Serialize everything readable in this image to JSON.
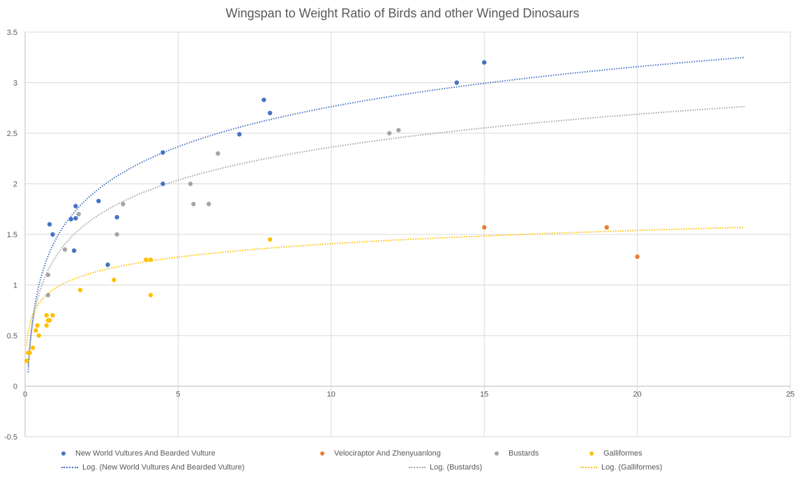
{
  "chart_data": {
    "type": "scatter",
    "title": "Wingspan to Weight Ratio of Birds and other Winged Dinosaurs",
    "xlabel": "",
    "ylabel": "",
    "xlim": [
      0,
      25
    ],
    "ylim": [
      -0.5,
      3.5
    ],
    "x_ticks": [
      "0",
      "5",
      "10",
      "15",
      "20",
      "25"
    ],
    "y_ticks": [
      "-0.5",
      "0",
      "0.5",
      "1",
      "1.5",
      "2",
      "2.5",
      "3",
      "3.5"
    ],
    "grid": true,
    "legend_position": "bottom",
    "series": [
      {
        "name": "New World Vultures And Bearded Vulture",
        "color": "#4472C4",
        "points": [
          [
            0.8,
            1.6
          ],
          [
            0.9,
            1.5
          ],
          [
            1.5,
            1.65
          ],
          [
            1.6,
            1.34
          ],
          [
            1.65,
            1.78
          ],
          [
            1.65,
            1.66
          ],
          [
            2.4,
            1.83
          ],
          [
            2.7,
            1.2
          ],
          [
            3.0,
            1.67
          ],
          [
            4.5,
            2.31
          ],
          [
            4.5,
            2.0
          ],
          [
            7.0,
            2.49
          ],
          [
            7.8,
            2.83
          ],
          [
            8.0,
            2.7
          ],
          [
            14.1,
            3.0
          ],
          [
            15.0,
            3.2
          ]
        ]
      },
      {
        "name": "Velociraptor And Zhenyuanlong",
        "color": "#ED7D31",
        "points": [
          [
            15.0,
            1.57
          ],
          [
            19.0,
            1.57
          ],
          [
            20.0,
            1.28
          ]
        ]
      },
      {
        "name": "Bustards",
        "color": "#A5A5A5",
        "points": [
          [
            0.75,
            0.9
          ],
          [
            0.75,
            1.1
          ],
          [
            1.3,
            1.35
          ],
          [
            1.75,
            1.7
          ],
          [
            3.0,
            1.5
          ],
          [
            3.2,
            1.8
          ],
          [
            5.4,
            2.0
          ],
          [
            5.5,
            1.8
          ],
          [
            6.0,
            1.8
          ],
          [
            6.3,
            2.3
          ],
          [
            11.9,
            2.5
          ],
          [
            12.2,
            2.53
          ]
        ]
      },
      {
        "name": "Galliformes",
        "color": "#FFC000",
        "points": [
          [
            0.05,
            0.25
          ],
          [
            0.1,
            0.33
          ],
          [
            0.15,
            0.33
          ],
          [
            0.25,
            0.38
          ],
          [
            0.35,
            0.55
          ],
          [
            0.4,
            0.6
          ],
          [
            0.45,
            0.5
          ],
          [
            0.7,
            0.7
          ],
          [
            0.7,
            0.6
          ],
          [
            0.75,
            0.65
          ],
          [
            0.8,
            0.65
          ],
          [
            0.9,
            0.7
          ],
          [
            1.8,
            0.95
          ],
          [
            2.9,
            1.05
          ],
          [
            3.95,
            1.25
          ],
          [
            4.1,
            1.25
          ],
          [
            4.1,
            0.9
          ],
          [
            8.0,
            1.45
          ]
        ]
      }
    ],
    "trendlines": [
      {
        "name": "Log. (New World Vultures And Bearded Vulture)",
        "type": "logarithmic",
        "color": "#4472C4",
        "a": 0.57,
        "b": 1.45,
        "x_range": [
          0.1,
          23.5
        ]
      },
      {
        "name": "Log. (Bustards)",
        "type": "logarithmic",
        "color": "#A5A5A5",
        "a": 0.47,
        "b": 1.28,
        "x_range": [
          0.1,
          23.5
        ]
      },
      {
        "name": "Log. (Galliformes)",
        "type": "logarithmic",
        "color": "#FFC000",
        "a": 0.19,
        "b": 0.97,
        "x_range": [
          0.05,
          23.5
        ]
      }
    ]
  }
}
